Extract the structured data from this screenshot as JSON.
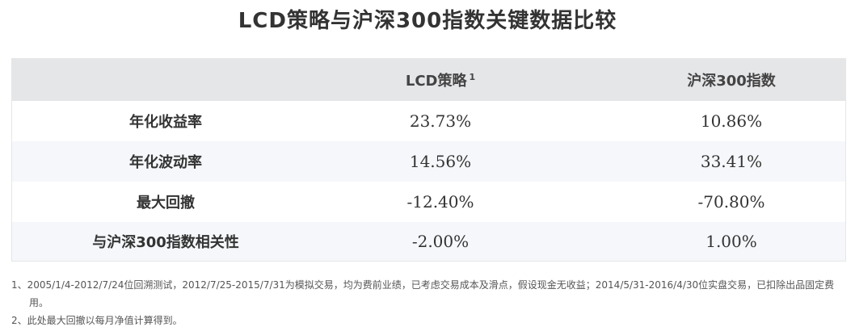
{
  "title": "LCD策略与沪深300指数关键数据比较",
  "table": {
    "headers": [
      "",
      "LCD策略",
      "沪深300指数"
    ],
    "header_superscript": "1",
    "rows": [
      {
        "label": "年化收益率",
        "lcd": "23.73%",
        "hs300": "10.86%"
      },
      {
        "label": "年化波动率",
        "lcd": "14.56%",
        "hs300": "33.41%"
      },
      {
        "label": "最大回撤",
        "lcd": "-12.40%",
        "hs300": "-70.80%"
      },
      {
        "label": "与沪深300指数相关性",
        "lcd": "-2.00%",
        "hs300": "1.00%"
      }
    ]
  },
  "footnotes": [
    "1、2005/1/4-2012/7/24位回溯测试，2012/7/25-2015/7/31为模拟交易，均为费前业绩，已考虑交易成本及滑点，假设现金无收益；2014/5/31-2016/4/30位实盘交易，已扣除出品固定费用。",
    "2、此处最大回撤以每月净值计算得到。"
  ],
  "colors": {
    "header_bg": "#e5e6e8",
    "row_alt_bg": "#f5f7fa",
    "text": "#333333"
  }
}
